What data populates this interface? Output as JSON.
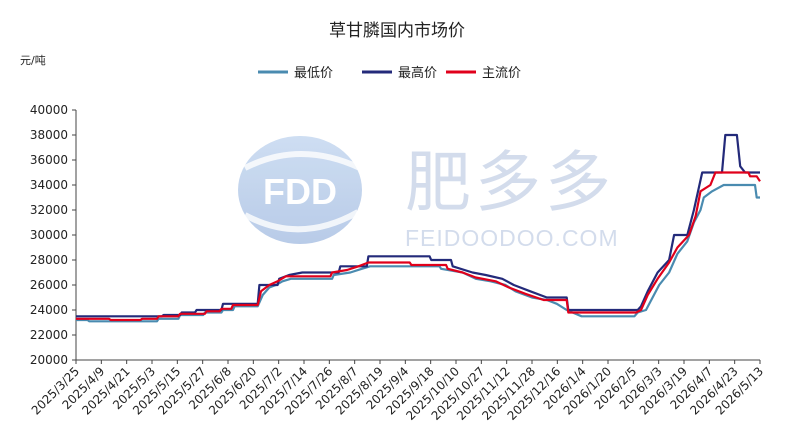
{
  "chart_data": {
    "type": "line",
    "title": "草甘膦国内市场价",
    "unit_label": "元/吨",
    "legend_position": "top-center",
    "ylim": [
      20000,
      40000
    ],
    "yticks": [
      20000,
      22000,
      24000,
      26000,
      28000,
      30000,
      32000,
      34000,
      36000,
      38000,
      40000
    ],
    "ytick_labels": [
      "20000",
      "22000",
      "24000",
      "26000",
      "28000",
      "30000",
      "32000",
      "34000",
      "36000",
      "38000",
      "40000"
    ],
    "xlim": [
      "2025/3/25",
      "2026/5/13"
    ],
    "xtick_labels": [
      "2025/3/25",
      "2025/4/9",
      "2025/4/21",
      "2025/5/3",
      "2025/5/15",
      "2025/5/27",
      "2025/6/8",
      "2025/6/20",
      "2025/7/2",
      "2025/7/14",
      "2025/7/26",
      "2025/8/7",
      "2025/8/19",
      "2025/9/4",
      "2025/9/18",
      "2025/10/10",
      "2025/10/27",
      "2025/11/12",
      "2025/11/28",
      "2025/12/16",
      "2026/1/4",
      "2026/1/20",
      "2026/2/5",
      "2026/3/3",
      "2026/3/19",
      "2026/4/7",
      "2026/4/23",
      "2026/5/13"
    ],
    "grid": false,
    "series": [
      {
        "name": "最低价",
        "color": "#4a8bb0",
        "points": [
          [
            "2025/3/25",
            23200
          ],
          [
            "2025/4/1",
            23200
          ],
          [
            "2025/4/2",
            23100
          ],
          [
            "2025/5/13",
            23100
          ],
          [
            "2025/5/14",
            23300
          ],
          [
            "2025/5/26",
            23300
          ],
          [
            "2025/5/27",
            23600
          ],
          [
            "2025/6/10",
            23600
          ],
          [
            "2025/6/11",
            23800
          ],
          [
            "2025/6/21",
            23800
          ],
          [
            "2025/6/22",
            24000
          ],
          [
            "2025/6/28",
            24000
          ],
          [
            "2025/6/29",
            24300
          ],
          [
            "2025/7/13",
            24300
          ],
          [
            "2025/7/16",
            25200
          ],
          [
            "2025/7/20",
            25800
          ],
          [
            "2025/7/24",
            26000
          ],
          [
            "2025/7/28",
            26300
          ],
          [
            "2025/8/2",
            26500
          ],
          [
            "2025/8/27",
            26500
          ],
          [
            "2025/8/28",
            26800
          ],
          [
            "2025/9/7",
            27000
          ],
          [
            "2025/9/14",
            27300
          ],
          [
            "2025/9/19",
            27500
          ],
          [
            "2025/10/31",
            27500
          ],
          [
            "2025/11/1",
            27300
          ],
          [
            "2025/11/14",
            27000
          ],
          [
            "2025/11/22",
            26500
          ],
          [
            "2025/12/1",
            26300
          ],
          [
            "2025/12/10",
            26000
          ],
          [
            "2025/12/16",
            25500
          ],
          [
            "2025/12/26",
            25000
          ],
          [
            "2026/1/4",
            24800
          ],
          [
            "2026/1/10",
            24500
          ],
          [
            "2026/1/16",
            24000
          ],
          [
            "2026/1/25",
            23500
          ],
          [
            "2026/2/26",
            23500
          ],
          [
            "2026/2/28",
            23800
          ],
          [
            "2026/3/5",
            24000
          ],
          [
            "2026/3/9",
            25000
          ],
          [
            "2026/3/13",
            26000
          ],
          [
            "2026/3/19",
            27000
          ],
          [
            "2026/3/24",
            28500
          ],
          [
            "2026/3/30",
            29500
          ],
          [
            "2026/4/3",
            31000
          ],
          [
            "2026/4/7",
            32000
          ],
          [
            "2026/4/9",
            33000
          ],
          [
            "2026/4/14",
            33500
          ],
          [
            "2026/4/21",
            34000
          ],
          [
            "2026/5/10",
            34000
          ],
          [
            "2026/5/11",
            33000
          ],
          [
            "2026/5/13",
            33000
          ]
        ]
      },
      {
        "name": "最高价",
        "color": "#232a7a",
        "points": [
          [
            "2025/3/25",
            23500
          ],
          [
            "2025/5/16",
            23500
          ],
          [
            "2025/5/17",
            23600
          ],
          [
            "2025/5/27",
            23600
          ],
          [
            "2025/5/28",
            23800
          ],
          [
            "2025/6/5",
            23800
          ],
          [
            "2025/6/6",
            24000
          ],
          [
            "2025/6/21",
            24000
          ],
          [
            "2025/6/22",
            24500
          ],
          [
            "2025/7/13",
            24500
          ],
          [
            "2025/7/14",
            26000
          ],
          [
            "2025/7/25",
            26000
          ],
          [
            "2025/7/26",
            26500
          ],
          [
            "2025/8/1",
            26800
          ],
          [
            "2025/8/9",
            27000
          ],
          [
            "2025/8/31",
            27000
          ],
          [
            "2025/9/1",
            27500
          ],
          [
            "2025/9/17",
            27500
          ],
          [
            "2025/9/18",
            28300
          ],
          [
            "2025/10/25",
            28300
          ],
          [
            "2025/10/26",
            28000
          ],
          [
            "2025/11/7",
            28000
          ],
          [
            "2025/11/8",
            27500
          ],
          [
            "2025/11/20",
            27000
          ],
          [
            "2025/11/28",
            26800
          ],
          [
            "2025/12/8",
            26500
          ],
          [
            "2025/12/15",
            26000
          ],
          [
            "2025/12/25",
            25500
          ],
          [
            "2026/1/4",
            25000
          ],
          [
            "2026/1/16",
            25000
          ],
          [
            "2026/1/17",
            24000
          ],
          [
            "2026/2/28",
            24000
          ],
          [
            "2026/3/2",
            24300
          ],
          [
            "2026/3/6",
            25500
          ],
          [
            "2026/3/12",
            27000
          ],
          [
            "2026/3/19",
            28000
          ],
          [
            "2026/3/22",
            30000
          ],
          [
            "2026/3/30",
            30000
          ],
          [
            "2026/4/3",
            32000
          ],
          [
            "2026/4/8",
            35000
          ],
          [
            "2026/4/20",
            35000
          ],
          [
            "2026/4/22",
            38000
          ],
          [
            "2026/4/29",
            38000
          ],
          [
            "2026/5/1",
            35500
          ],
          [
            "2026/5/4",
            35000
          ],
          [
            "2026/5/13",
            35000
          ]
        ]
      },
      {
        "name": "主流价",
        "color": "#e0001b",
        "points": [
          [
            "2025/3/25",
            23300
          ],
          [
            "2025/4/14",
            23300
          ],
          [
            "2025/4/15",
            23200
          ],
          [
            "2025/5/3",
            23200
          ],
          [
            "2025/5/4",
            23300
          ],
          [
            "2025/5/13",
            23300
          ],
          [
            "2025/5/14",
            23500
          ],
          [
            "2025/5/26",
            23500
          ],
          [
            "2025/5/27",
            23700
          ],
          [
            "2025/6/11",
            23700
          ],
          [
            "2025/6/12",
            23900
          ],
          [
            "2025/6/20",
            23900
          ],
          [
            "2025/6/21",
            24100
          ],
          [
            "2025/6/27",
            24100
          ],
          [
            "2025/6/28",
            24400
          ],
          [
            "2025/7/13",
            24400
          ],
          [
            "2025/7/15",
            25500
          ],
          [
            "2025/7/20",
            26000
          ],
          [
            "2025/7/25",
            26300
          ],
          [
            "2025/7/30",
            26700
          ],
          [
            "2025/8/26",
            26700
          ],
          [
            "2025/8/27",
            27000
          ],
          [
            "2025/9/5",
            27200
          ],
          [
            "2025/9/12",
            27500
          ],
          [
            "2025/9/18",
            27800
          ],
          [
            "2025/10/13",
            27800
          ],
          [
            "2025/10/14",
            27600
          ],
          [
            "2025/11/4",
            27600
          ],
          [
            "2025/11/5",
            27300
          ],
          [
            "2025/11/14",
            27000
          ],
          [
            "2025/11/22",
            26600
          ],
          [
            "2025/12/4",
            26300
          ],
          [
            "2025/12/12",
            25800
          ],
          [
            "2025/12/22",
            25300
          ],
          [
            "2026/1/2",
            24800
          ],
          [
            "2026/1/16",
            24800
          ],
          [
            "2026/1/17",
            23800
          ],
          [
            "2026/2/27",
            23800
          ],
          [
            "2026/3/2",
            24000
          ],
          [
            "2026/3/6",
            25200
          ],
          [
            "2026/3/12",
            26500
          ],
          [
            "2026/3/19",
            27800
          ],
          [
            "2026/3/24",
            29000
          ],
          [
            "2026/3/31",
            30000
          ],
          [
            "2026/4/4",
            31500
          ],
          [
            "2026/4/7",
            33500
          ],
          [
            "2026/4/13",
            34000
          ],
          [
            "2026/4/16",
            35000
          ],
          [
            "2026/5/6",
            35000
          ],
          [
            "2026/5/7",
            34700
          ],
          [
            "2026/5/11",
            34700
          ],
          [
            "2026/5/13",
            34300
          ]
        ]
      }
    ]
  },
  "watermark": {
    "logo_text": "FDD",
    "brand_text": "肥多多",
    "url_text": "FEIDOODOO.COM",
    "color": "#cfd9ea",
    "logo_color": "#8fb2de"
  }
}
